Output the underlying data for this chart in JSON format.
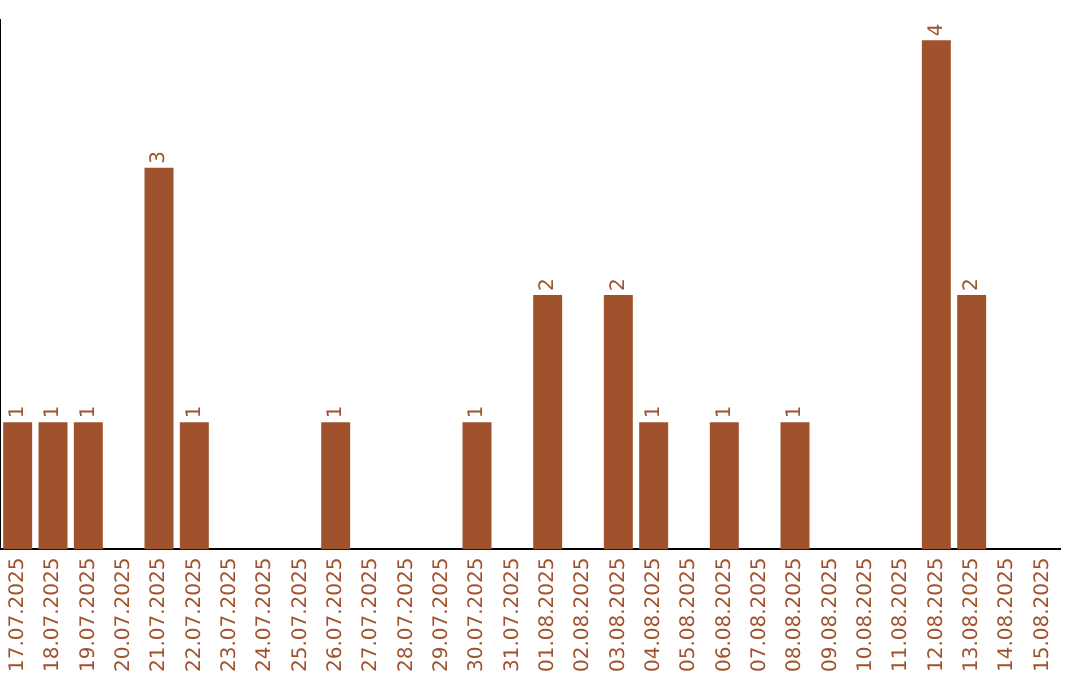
{
  "chart_data": {
    "type": "bar",
    "categories": [
      "17.07.2025",
      "18.07.2025",
      "19.07.2025",
      "20.07.2025",
      "21.07.2025",
      "22.07.2025",
      "23.07.2025",
      "24.07.2025",
      "25.07.2025",
      "26.07.2025",
      "27.07.2025",
      "28.07.2025",
      "29.07.2025",
      "30.07.2025",
      "31.07.2025",
      "01.08.2025",
      "02.08.2025",
      "03.08.2025",
      "04.08.2025",
      "05.08.2025",
      "06.08.2025",
      "07.08.2025",
      "08.08.2025",
      "09.08.2025",
      "10.08.2025",
      "11.08.2025",
      "12.08.2025",
      "13.08.2025",
      "14.08.2025",
      "15.08.2025"
    ],
    "values": [
      1,
      1,
      1,
      0,
      3,
      1,
      0,
      0,
      0,
      1,
      0,
      0,
      0,
      1,
      0,
      2,
      0,
      2,
      1,
      0,
      1,
      0,
      1,
      0,
      0,
      0,
      4,
      2,
      0,
      0
    ],
    "value_labels": [
      "1",
      "1",
      "1",
      null,
      "3",
      "1",
      null,
      null,
      null,
      "1",
      null,
      null,
      null,
      "1",
      null,
      "2",
      null,
      "2",
      "1",
      null,
      "1",
      null,
      "1",
      null,
      null,
      null,
      "4",
      "2",
      null,
      null
    ],
    "color": "#a0522d",
    "grid": false,
    "legend": false
  }
}
